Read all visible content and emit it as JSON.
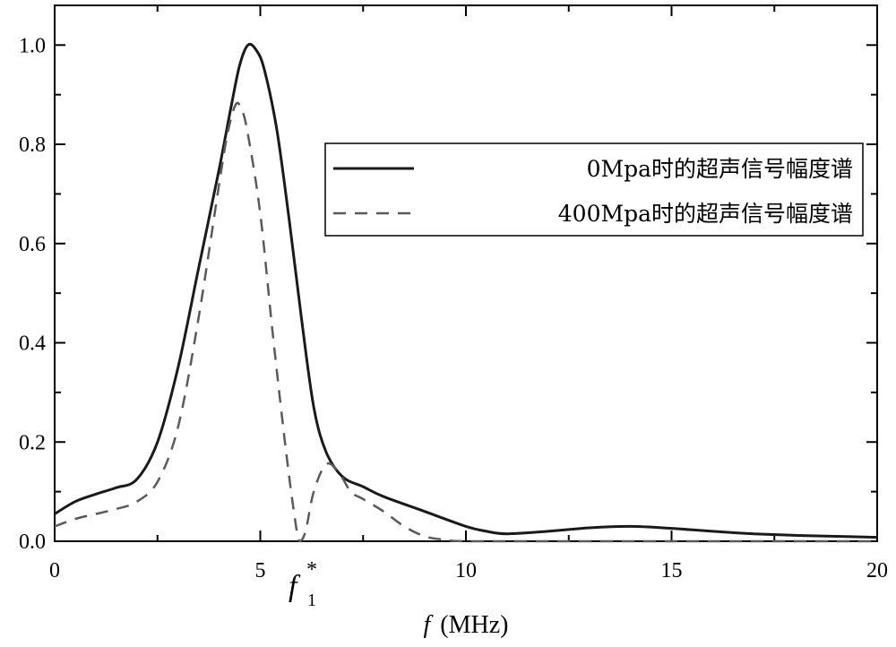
{
  "chart_data": {
    "type": "line",
    "xlabel_italic": "f",
    "xlabel_unit": "(MHz)",
    "ylabel": "",
    "xlim": [
      0,
      20
    ],
    "ylim": [
      0,
      1.08
    ],
    "xticks": [
      0,
      5,
      10,
      15,
      20
    ],
    "xtick_labels": [
      "0",
      "5",
      "10",
      "15",
      "20"
    ],
    "yticks": [
      0.0,
      0.2,
      0.4,
      0.6,
      0.8,
      1.0
    ],
    "ytick_labels": [
      "0.0",
      "0.2",
      "0.4",
      "0.6",
      "0.8",
      "1.0"
    ],
    "grid": false,
    "legend_position": "center-right",
    "annotation": {
      "text": "f",
      "subscript": "1",
      "superscript": "*",
      "x": 6.0
    },
    "series": [
      {
        "name": "0Mpa时的超声信号幅度谱",
        "style": "solid",
        "color": "#1a1a1a",
        "points": [
          [
            0,
            0.055
          ],
          [
            0.5,
            0.08
          ],
          [
            1.0,
            0.095
          ],
          [
            1.5,
            0.108
          ],
          [
            2.0,
            0.125
          ],
          [
            2.5,
            0.2
          ],
          [
            3.0,
            0.35
          ],
          [
            3.5,
            0.55
          ],
          [
            4.0,
            0.75
          ],
          [
            4.3,
            0.88
          ],
          [
            4.5,
            0.96
          ],
          [
            4.7,
            1.0
          ],
          [
            4.9,
            0.99
          ],
          [
            5.1,
            0.95
          ],
          [
            5.4,
            0.83
          ],
          [
            5.7,
            0.65
          ],
          [
            6.0,
            0.45
          ],
          [
            6.3,
            0.27
          ],
          [
            6.6,
            0.18
          ],
          [
            7.0,
            0.13
          ],
          [
            7.5,
            0.11
          ],
          [
            8.0,
            0.09
          ],
          [
            9.0,
            0.06
          ],
          [
            10.0,
            0.03
          ],
          [
            10.5,
            0.02
          ],
          [
            11.0,
            0.015
          ],
          [
            12.0,
            0.02
          ],
          [
            13.0,
            0.027
          ],
          [
            14.0,
            0.03
          ],
          [
            15.0,
            0.026
          ],
          [
            16.0,
            0.02
          ],
          [
            17.0,
            0.015
          ],
          [
            18.0,
            0.012
          ],
          [
            19.0,
            0.01
          ],
          [
            20.0,
            0.008
          ]
        ]
      },
      {
        "name": "400Mpa时的超声信号幅度谱",
        "style": "dashed",
        "color": "#5a5a5a",
        "points": [
          [
            0,
            0.03
          ],
          [
            0.5,
            0.045
          ],
          [
            1.0,
            0.055
          ],
          [
            1.5,
            0.065
          ],
          [
            2.0,
            0.08
          ],
          [
            2.5,
            0.12
          ],
          [
            3.0,
            0.23
          ],
          [
            3.5,
            0.45
          ],
          [
            4.0,
            0.72
          ],
          [
            4.2,
            0.82
          ],
          [
            4.4,
            0.88
          ],
          [
            4.55,
            0.87
          ],
          [
            4.7,
            0.82
          ],
          [
            5.0,
            0.66
          ],
          [
            5.3,
            0.42
          ],
          [
            5.6,
            0.2
          ],
          [
            5.8,
            0.07
          ],
          [
            5.95,
            0.0
          ],
          [
            6.1,
            0.02
          ],
          [
            6.3,
            0.1
          ],
          [
            6.6,
            0.155
          ],
          [
            6.9,
            0.14
          ],
          [
            7.2,
            0.1
          ],
          [
            7.5,
            0.085
          ],
          [
            8.0,
            0.06
          ],
          [
            8.5,
            0.03
          ],
          [
            9.0,
            0.01
          ],
          [
            9.5,
            0.003
          ],
          [
            10.0,
            0.0
          ],
          [
            12.0,
            0.0
          ],
          [
            15.0,
            0.0
          ],
          [
            20.0,
            0.0
          ]
        ]
      }
    ]
  }
}
